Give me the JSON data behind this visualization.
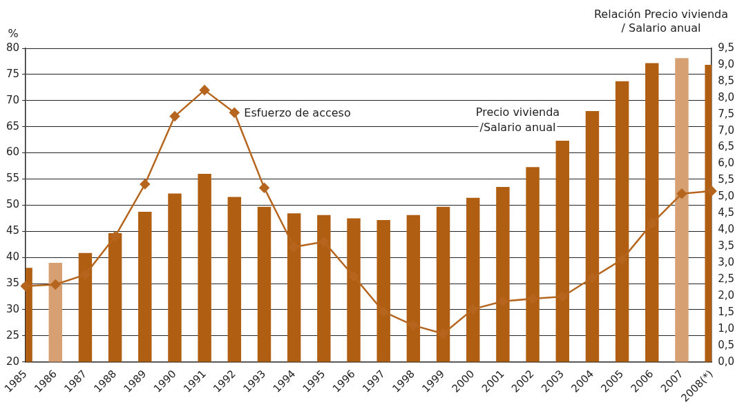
{
  "chart_data": {
    "type": "bar",
    "ylabel": "%",
    "y2label": "Relación Precio vivienda / Salario anual",
    "categories": [
      "1985",
      "1986",
      "1987",
      "1988",
      "1989",
      "1990",
      "1991",
      "1992",
      "1993",
      "1994",
      "1995",
      "1996",
      "1997",
      "1998",
      "1999",
      "2000",
      "2001",
      "2002",
      "2003",
      "2004",
      "2005",
      "2006",
      "2007",
      "2008(*)"
    ],
    "series": [
      {
        "name": "Precio vivienda /Salario anual",
        "axis": "y2",
        "colors": [
          "#b05e12",
          "#d6a072",
          "#b05e12",
          "#b05e12",
          "#b05e12",
          "#b05e12",
          "#b05e12",
          "#b05e12",
          "#b05e12",
          "#b05e12",
          "#b05e12",
          "#b05e12",
          "#b05e12",
          "#b05e12",
          "#b05e12",
          "#b05e12",
          "#b05e12",
          "#b05e12",
          "#b05e12",
          "#b05e12",
          "#b05e12",
          "#b05e12",
          "#d6a072",
          "#b05e12"
        ],
        "values": [
          2.85,
          3.0,
          3.3,
          3.9,
          4.55,
          5.1,
          5.7,
          5.0,
          4.7,
          4.5,
          4.45,
          4.35,
          4.3,
          4.45,
          4.7,
          4.97,
          5.3,
          5.9,
          6.7,
          7.6,
          8.5,
          9.05,
          9.2,
          9.0
        ]
      },
      {
        "name": "Esfuerzo de acceso",
        "type": "line",
        "color": "#b5651d",
        "marker": "diamond",
        "line_style": "solid",
        "values": [
          34.5,
          34.8,
          36.7,
          44,
          54,
          67,
          72,
          67.7,
          53.3,
          42,
          43,
          36.4,
          29.6,
          27,
          25.4,
          30.1,
          31.6,
          32.1,
          32.5,
          36.1,
          39.6,
          46.5,
          52.2,
          52.7
        ]
      }
    ],
    "ylim": [
      20,
      80
    ],
    "yticks": [
      20,
      25,
      30,
      35,
      40,
      45,
      50,
      55,
      60,
      65,
      70,
      75,
      80
    ],
    "y2lim": [
      0,
      9.5
    ],
    "y2ticks": [
      {
        "value": 0,
        "label": "0,0"
      },
      {
        "value": 0.5,
        "label": "0,5"
      },
      {
        "value": 1,
        "label": "1,0"
      },
      {
        "value": 1.5,
        "label": "1,5"
      },
      {
        "value": 2,
        "label": "2,0"
      },
      {
        "value": 2.5,
        "label": "2,5"
      },
      {
        "value": 3,
        "label": "3,0"
      },
      {
        "value": 3.5,
        "label": "3,5"
      },
      {
        "value": 4,
        "label": "4,0"
      },
      {
        "value": 4.5,
        "label": "4,5"
      },
      {
        "value": 5,
        "label": "5,0"
      },
      {
        "value": 5.5,
        "label": "5,5"
      },
      {
        "value": 6,
        "label": "6,0"
      },
      {
        "value": 6.5,
        "label": "6,5"
      },
      {
        "value": 7,
        "label": "7,0"
      },
      {
        "value": 7.5,
        "label": "7,5"
      },
      {
        "value": 8,
        "label": "8,0"
      },
      {
        "value": 8.5,
        "label": "8,5"
      },
      {
        "value": 9,
        "label": "9,0"
      },
      {
        "value": 9.5,
        "label": "9,5"
      }
    ],
    "grid": "y",
    "legend": false
  }
}
